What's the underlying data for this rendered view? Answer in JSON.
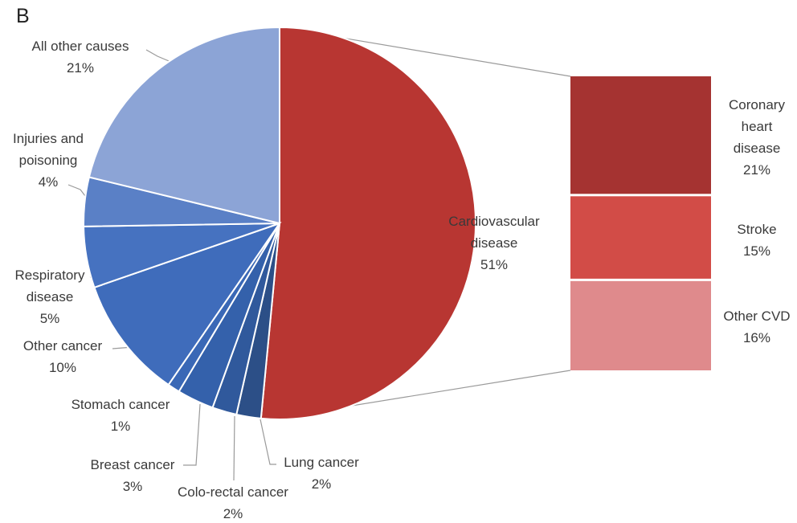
{
  "panel_label": "B",
  "chart_data": [
    {
      "type": "pie",
      "categories": [
        "Cardiovascular disease",
        "Lung cancer",
        "Colo-rectal cancer",
        "Breast cancer",
        "Stomach cancer",
        "Other cancer",
        "Respiratory disease",
        "Injuries and poisoning",
        "All other causes"
      ],
      "values": [
        51,
        2,
        2,
        3,
        1,
        10,
        5,
        4,
        21
      ],
      "value_labels": [
        "51%",
        "2%",
        "2%",
        "3%",
        "1%",
        "10%",
        "5%",
        "4%",
        "21%"
      ],
      "colors": [
        "#b83632",
        "#2c4f87",
        "#30599c",
        "#3461ab",
        "#3a68b6",
        "#3f6cbb",
        "#4672c0",
        "#5a80c6",
        "#8ca4d6"
      ]
    },
    {
      "type": "bar",
      "categories": [
        "Coronary heart disease",
        "Stroke",
        "Other CVD"
      ],
      "values": [
        21,
        15,
        16
      ],
      "value_labels": [
        "21%",
        "15%",
        "16%"
      ],
      "colors": [
        "#a53331",
        "#d24c47",
        "#df8a8c"
      ]
    }
  ]
}
